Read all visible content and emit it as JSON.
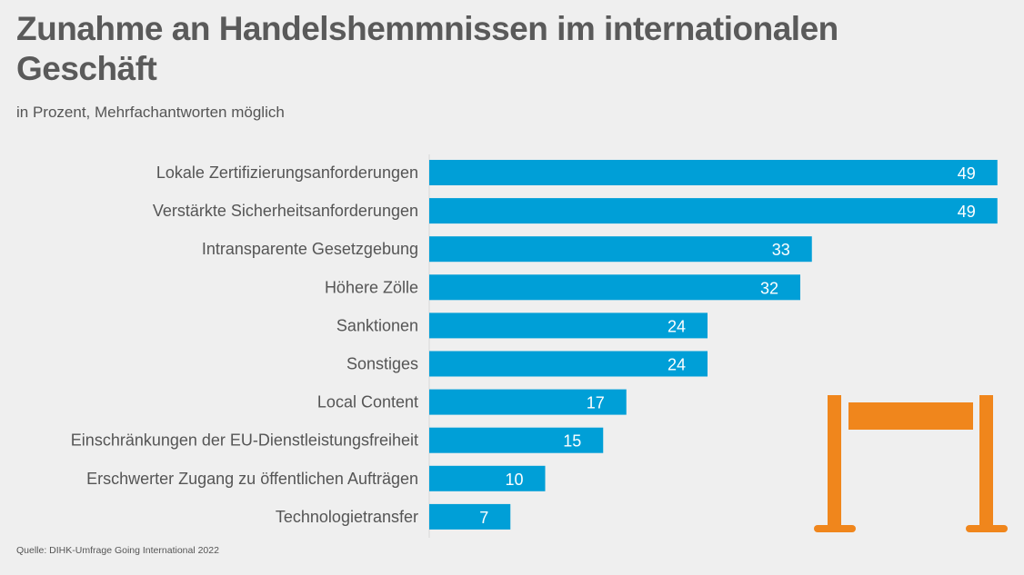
{
  "chart_data": {
    "type": "bar",
    "orientation": "horizontal",
    "title": "Zunahme an Handelshemmnissen im internationalen Geschäft",
    "subtitle": "in Prozent, Mehrfachantworten möglich",
    "categories": [
      "Lokale Zertifizierungsanforderungen",
      "Verstärkte Sicherheitsanforderungen",
      "Intransparente Gesetzgebung",
      "Höhere Zölle",
      "Sanktionen",
      "Sonstiges",
      "Local Content",
      "Einschränkungen der EU-Dienstleistungsfreiheit",
      "Erschwerter Zugang zu öffentlichen Aufträgen",
      "Technologietransfer"
    ],
    "values": [
      49,
      49,
      33,
      32,
      24,
      24,
      17,
      15,
      10,
      7
    ],
    "xlim": [
      0,
      50
    ],
    "grid": false,
    "data_labels": true,
    "source": "Quelle: DIHK-Umfrage Going International 2022",
    "colors": {
      "bar": "#009fd7",
      "icon": "#f0861c",
      "background": "#efefef"
    },
    "icon": "barrier-icon"
  }
}
